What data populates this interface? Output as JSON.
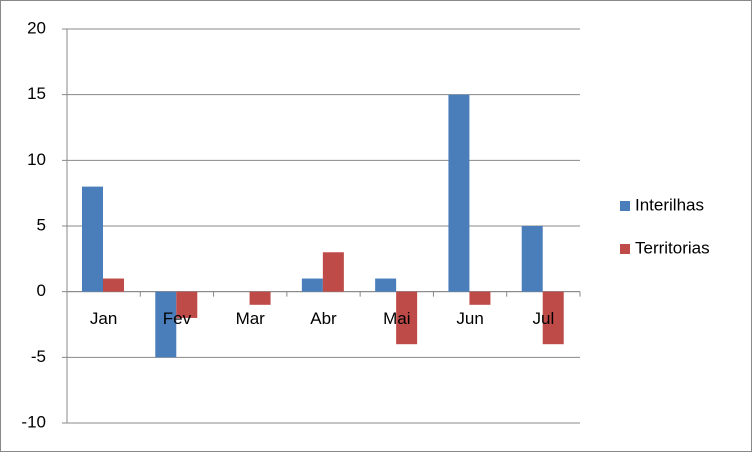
{
  "chart_data": {
    "type": "bar",
    "categories": [
      "Jan",
      "Fev",
      "Mar",
      "Abr",
      "Mai",
      "Jun",
      "Jul"
    ],
    "series": [
      {
        "name": "Interilhas",
        "color": "#4a7ebb",
        "values": [
          8,
          -5,
          0,
          1,
          1,
          15,
          5
        ]
      },
      {
        "name": "Territorias",
        "color": "#be4b48",
        "values": [
          1,
          -2,
          -1,
          3,
          -4,
          -1,
          -4
        ]
      }
    ],
    "ylim": [
      -10,
      20
    ],
    "yticks": [
      -10,
      -5,
      0,
      5,
      10,
      15,
      20
    ],
    "grid": true,
    "legend": "right"
  }
}
